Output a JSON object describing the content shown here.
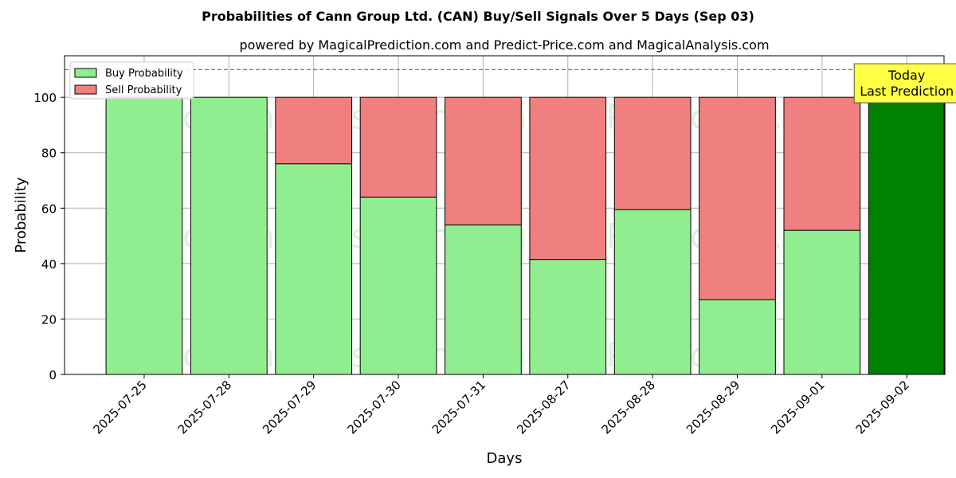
{
  "chart_data": {
    "type": "bar",
    "stacked": true,
    "title": "Probabilities of Cann Group Ltd. (CAN) Buy/Sell Signals Over 5 Days (Sep 03)",
    "subtitle": "powered by MagicalPrediction.com and Predict-Price.com and MagicalAnalysis.com",
    "xlabel": "Days",
    "ylabel": "Probability",
    "ylim": [
      0,
      115
    ],
    "yticks": [
      0,
      20,
      40,
      60,
      80,
      100
    ],
    "grid": true,
    "legend_position": "top-left",
    "reference_line": {
      "y": 110,
      "style": "dashed"
    },
    "categories": [
      "2025-07-25",
      "2025-07-28",
      "2025-07-29",
      "2025-07-30",
      "2025-07-31",
      "2025-08-27",
      "2025-08-28",
      "2025-08-29",
      "2025-09-01",
      "2025-09-02"
    ],
    "series": [
      {
        "name": "Buy Probability",
        "color": "#90ee90",
        "values": [
          100,
          100,
          76,
          64,
          54,
          41.5,
          59.5,
          27,
          52,
          100
        ]
      },
      {
        "name": "Sell Probability",
        "color": "#f08080",
        "values": [
          0,
          0,
          24,
          36,
          46,
          58.5,
          40.5,
          73,
          48,
          0
        ]
      }
    ],
    "highlight": {
      "index": 9,
      "color": "#008000"
    },
    "annotation": {
      "lines": [
        "Today",
        "Last Prediction"
      ],
      "background": "#ffff44"
    },
    "watermarks": [
      "MagicalAnalysis.com",
      "MagicalPrediction.com"
    ]
  }
}
